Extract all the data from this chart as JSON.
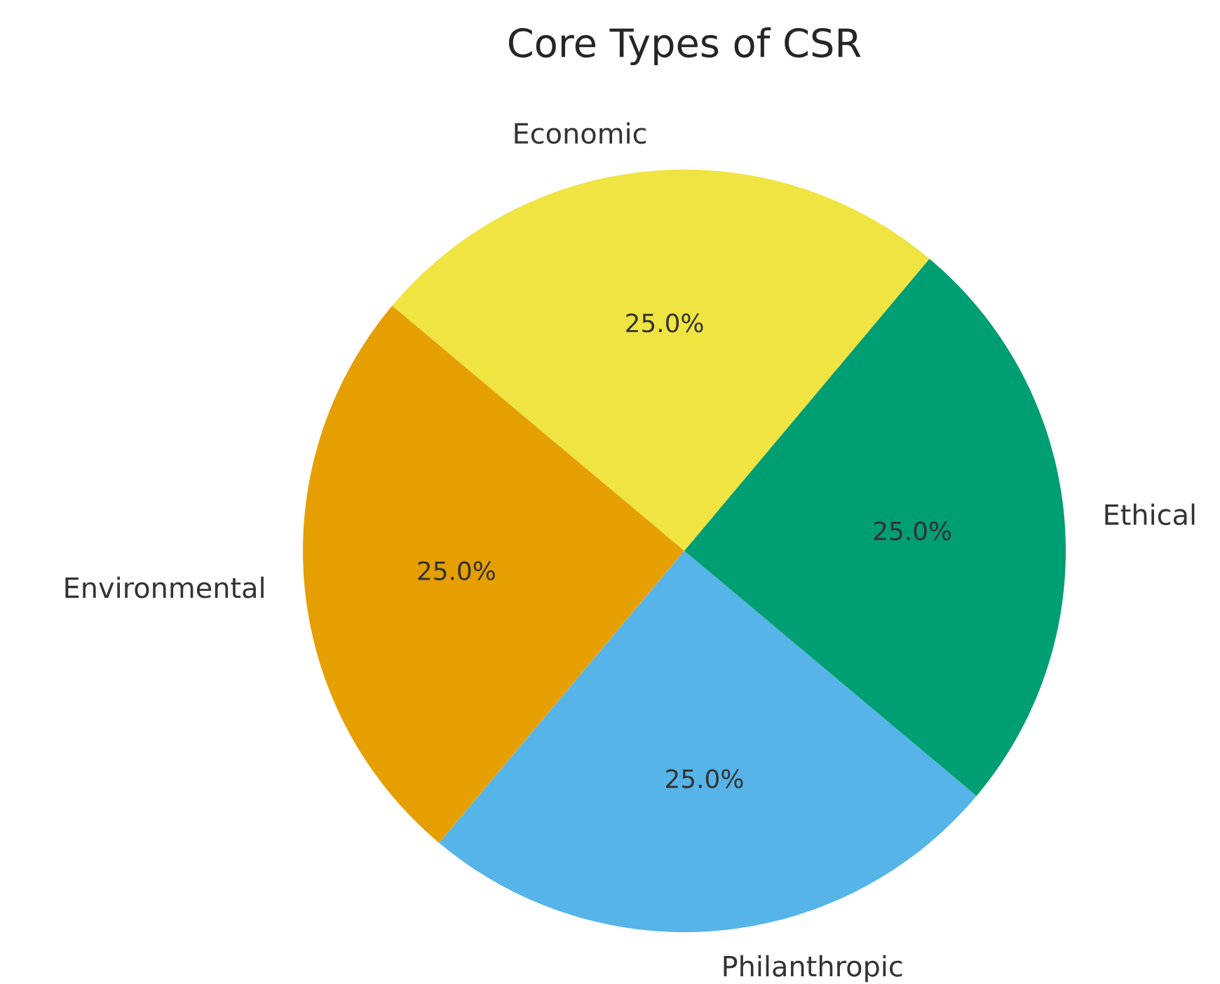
{
  "chart_data": {
    "type": "pie",
    "title": "Core Types of CSR",
    "categories": [
      "Economic",
      "Environmental",
      "Philanthropic",
      "Ethical"
    ],
    "values": [
      25,
      25,
      25,
      25
    ],
    "colors": [
      "#f0e442",
      "#e69f00",
      "#56b4e9",
      "#009e73"
    ],
    "value_labels": [
      "25.0%",
      "25.0%",
      "25.0%",
      "25.0%"
    ]
  }
}
